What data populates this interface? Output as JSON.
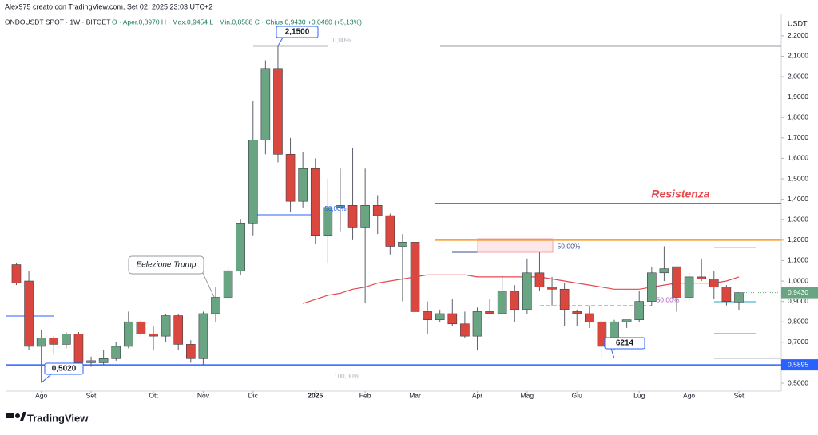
{
  "header": {
    "author_line": "Alex975 creato con TradingView.com, Set 02, 2025 23:03 UTC+2",
    "symbol_line": "ONDOUSDT SPOT · 1W · BITGET",
    "ohlc_line": "O · Aper.0,8970  H · Max.0,9454  L · Min.0,8588  C · Chius.0,9430  +0,0460 (+5,13%)"
  },
  "chart_data": {
    "type": "candlestick",
    "currency": "USDT",
    "open": [
      1.08,
      1.0,
      0.68,
      0.72,
      0.69,
      0.74,
      0.6,
      0.6,
      0.62,
      0.68,
      0.8,
      0.74,
      0.73,
      0.83,
      0.69,
      0.62,
      0.84,
      0.92,
      1.05,
      1.28,
      1.69,
      2.04,
      1.62,
      1.39,
      1.55,
      1.22,
      1.36,
      1.37,
      1.26,
      1.37,
      1.32,
      1.17,
      1.19,
      0.85,
      0.81,
      0.84,
      0.79,
      0.73,
      0.85,
      0.84,
      0.95,
      0.86,
      1.04,
      0.97,
      0.96,
      0.85,
      0.84,
      0.8,
      0.68,
      0.8,
      0.81,
      0.9,
      1.04,
      1.07,
      0.92,
      1.02,
      1.01,
      0.97,
      0.897
    ],
    "high": [
      1.09,
      1.05,
      0.76,
      0.73,
      0.75,
      0.75,
      0.63,
      0.66,
      0.7,
      0.85,
      0.81,
      0.78,
      0.84,
      0.84,
      0.71,
      0.85,
      0.97,
      1.07,
      1.3,
      1.88,
      2.08,
      2.15,
      1.7,
      1.63,
      1.6,
      1.5,
      1.55,
      1.65,
      1.55,
      1.42,
      1.33,
      1.23,
      1.19,
      0.9,
      0.86,
      0.91,
      0.85,
      0.87,
      0.91,
      1.03,
      0.98,
      1.11,
      1.14,
      1.02,
      0.99,
      0.86,
      0.88,
      0.81,
      0.81,
      0.81,
      0.95,
      1.07,
      1.17,
      1.07,
      1.04,
      1.11,
      1.05,
      0.98,
      0.9454
    ],
    "low": [
      0.98,
      0.66,
      0.502,
      0.64,
      0.67,
      0.59,
      0.58,
      0.59,
      0.61,
      0.67,
      0.72,
      0.66,
      0.7,
      0.66,
      0.6,
      0.59,
      0.8,
      0.91,
      1.03,
      1.22,
      1.62,
      1.58,
      1.34,
      1.36,
      1.18,
      1.09,
      1.24,
      1.2,
      0.89,
      1.23,
      1.13,
      0.9,
      0.85,
      0.74,
      0.8,
      0.78,
      0.72,
      0.66,
      0.84,
      0.84,
      0.8,
      0.84,
      0.95,
      0.88,
      0.78,
      0.78,
      0.77,
      0.6214,
      0.66,
      0.77,
      0.8,
      0.88,
      1.0,
      0.85,
      0.9,
      1.0,
      0.91,
      0.88,
      0.8588
    ],
    "close": [
      0.99,
      0.68,
      0.72,
      0.69,
      0.74,
      0.6,
      0.61,
      0.62,
      0.68,
      0.8,
      0.74,
      0.73,
      0.83,
      0.69,
      0.62,
      0.84,
      0.92,
      1.05,
      1.28,
      1.69,
      2.04,
      1.62,
      1.39,
      1.55,
      1.22,
      1.36,
      1.37,
      1.26,
      1.37,
      1.32,
      1.17,
      1.19,
      0.85,
      0.81,
      0.84,
      0.79,
      0.73,
      0.85,
      0.84,
      0.95,
      0.86,
      1.04,
      0.97,
      0.96,
      0.86,
      0.84,
      0.8,
      0.68,
      0.8,
      0.81,
      0.9,
      1.04,
      1.06,
      0.92,
      1.02,
      1.01,
      0.97,
      0.9,
      0.943
    ],
    "moving_average": {
      "color": "#e5484d",
      "values": [
        null,
        null,
        null,
        null,
        null,
        null,
        null,
        null,
        null,
        null,
        null,
        null,
        null,
        null,
        null,
        null,
        null,
        null,
        null,
        null,
        null,
        null,
        null,
        0.89,
        0.91,
        0.93,
        0.94,
        0.96,
        0.97,
        0.99,
        1.0,
        1.01,
        1.02,
        1.03,
        1.03,
        1.03,
        1.03,
        1.02,
        1.02,
        1.02,
        1.02,
        1.02,
        1.02,
        1.01,
        1.0,
        0.99,
        0.98,
        0.97,
        0.96,
        0.96,
        0.96,
        0.97,
        0.98,
        0.99,
        0.99,
        0.99,
        0.99,
        1.0,
        1.02
      ]
    },
    "up_color": "#6aa583",
    "down_color": "#d9473f",
    "last_price_label": "0,9430",
    "levels": [
      {
        "value": 0.5895,
        "label": "0,5895",
        "color": "#2962ff"
      },
      {
        "value": 1.38,
        "color": "#e5484d"
      },
      {
        "value": 1.2,
        "color": "#f59a23"
      }
    ],
    "annotations": [
      "2,1500",
      "0,5020",
      "6214",
      "Eelezione Trump",
      "Resistenza",
      "0,00%",
      "50,00%",
      "100,00%",
      "50,00%",
      "50,00%"
    ],
    "xlim": [
      -0.8,
      61.4
    ],
    "xticks": [
      {
        "value": 2,
        "label": "Ago"
      },
      {
        "value": 6,
        "label": "Set"
      },
      {
        "value": 11,
        "label": "Ott"
      },
      {
        "value": 15,
        "label": "Nov"
      },
      {
        "value": 19,
        "label": "Dic"
      },
      {
        "value": 24,
        "label": "2025"
      },
      {
        "value": 28,
        "label": "Feb"
      },
      {
        "value": 32,
        "label": "Mar"
      },
      {
        "value": 37,
        "label": "Apr"
      },
      {
        "value": 41,
        "label": "Mag"
      },
      {
        "value": 45,
        "label": "Giu"
      },
      {
        "value": 50,
        "label": "Lug"
      },
      {
        "value": 54,
        "label": "Ago"
      },
      {
        "value": 58,
        "label": "Set"
      }
    ],
    "ylim": [
      0.461,
      2.297
    ],
    "yticks": [
      {
        "value": 0.5,
        "label": "0,5000"
      },
      {
        "value": 0.6,
        "label": "0,6000"
      },
      {
        "value": 0.7,
        "label": "0,7000"
      },
      {
        "value": 0.8,
        "label": "0,8000"
      },
      {
        "value": 0.9,
        "label": "0,9000"
      },
      {
        "value": 1.0,
        "label": "1,0000"
      },
      {
        "value": 1.1,
        "label": "1,1000"
      },
      {
        "value": 1.2,
        "label": "1,2000"
      },
      {
        "value": 1.3,
        "label": "1,3000"
      },
      {
        "value": 1.4,
        "label": "1,4000"
      },
      {
        "value": 1.5,
        "label": "1,5000"
      },
      {
        "value": 1.6,
        "label": "1,6000"
      },
      {
        "value": 1.7,
        "label": "1,7000"
      },
      {
        "value": 1.8,
        "label": "1,8000"
      },
      {
        "value": 1.9,
        "label": "1,9000"
      },
      {
        "value": 2.0,
        "label": "2,0000"
      },
      {
        "value": 2.1,
        "label": "2,1000"
      },
      {
        "value": 2.2,
        "label": "2,2000"
      }
    ],
    "logo": "TradingView"
  }
}
